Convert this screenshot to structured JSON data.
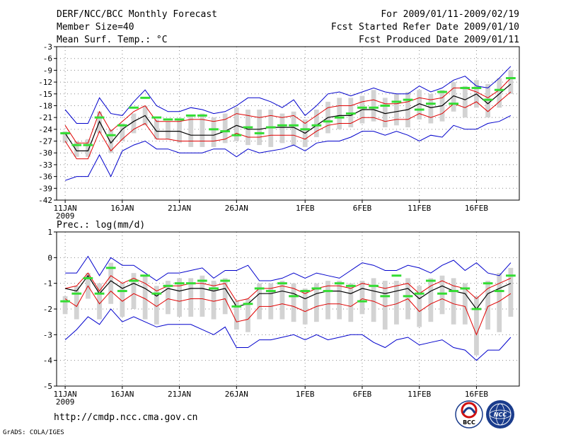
{
  "header": {
    "title": "DERF/NCC/BCC Monthly Forecast",
    "member_size": "Member Size=40",
    "variable": "Mean Surf. Temp.: °C",
    "period": "For 2009/01/11-2009/02/19",
    "fcst_started": "Fcst Started Refer Date 2009/01/10",
    "fcst_produced": "Fcst Produced Date 2009/01/11"
  },
  "footer": {
    "url": "http://cmdp.ncc.cma.gov.cn",
    "grads_credit": "GrADS: COLA/IGES",
    "logo_bcc": "BCC",
    "logo_ncc": "NCC"
  },
  "colors": {
    "ensemble_mean": "#000000",
    "spread_band": "#e00000",
    "extreme_envelope": "#0000cc",
    "box": "#d3d3d3",
    "observation": "#33dd33",
    "grid": "#888888"
  },
  "chart_data": [
    {
      "type": "line",
      "title": "Mean Surf. Temp.: °C",
      "xlabel": "",
      "ylabel": "°C",
      "ylim": [
        -42,
        -3
      ],
      "y_ticks": [
        "-3",
        "-6",
        "-9",
        "-12",
        "-15",
        "-18",
        "-21",
        "-24",
        "-27",
        "-30",
        "-33",
        "-36",
        "-39",
        "-42"
      ],
      "x_ticks": [
        {
          "day": 1,
          "label": "11JAN",
          "sublabel": "2009"
        },
        {
          "day": 6,
          "label": "16JAN"
        },
        {
          "day": 11,
          "label": "21JAN"
        },
        {
          "day": 16,
          "label": "26JAN"
        },
        {
          "day": 22,
          "label": "1FEB"
        },
        {
          "day": 27,
          "label": "6FEB"
        },
        {
          "day": 32,
          "label": "11FEB"
        },
        {
          "day": 37,
          "label": "16FEB"
        }
      ],
      "grid": true,
      "x": [
        1,
        2,
        3,
        4,
        5,
        6,
        7,
        8,
        9,
        10,
        11,
        12,
        13,
        14,
        15,
        16,
        17,
        18,
        19,
        20,
        21,
        22,
        23,
        24,
        25,
        26,
        27,
        28,
        29,
        30,
        31,
        32,
        33,
        34,
        35,
        36,
        37,
        38,
        39,
        40
      ],
      "series": [
        {
          "name": "max",
          "values": [
            -19,
            -22.5,
            -22.5,
            -16,
            -20,
            -20.5,
            -17,
            -14,
            -18,
            -19.5,
            -19.5,
            -18.5,
            -19,
            -20,
            -19.5,
            -18,
            -16,
            -16,
            -17,
            -18.5,
            -16.5,
            -20.5,
            -18,
            -15,
            -14.5,
            -15.5,
            -14.5,
            -13.5,
            -14.5,
            -15,
            -15,
            -13,
            -14.5,
            -13.5,
            -11.5,
            -10.5,
            -13,
            -13.5,
            -11,
            -8
          ]
        },
        {
          "name": "upper",
          "values": [
            -23,
            -27.5,
            -27.5,
            -19.5,
            -24.5,
            -22,
            -19.5,
            -18,
            -22,
            -22,
            -22,
            -21.5,
            -21.5,
            -22,
            -21.5,
            -20,
            -20.5,
            -21,
            -20.5,
            -21,
            -20.5,
            -22.5,
            -20.5,
            -18.5,
            -18,
            -18,
            -17,
            -16.5,
            -17.5,
            -17.5,
            -17,
            -16,
            -16.5,
            -16,
            -13.5,
            -13.5,
            -14.5,
            -16,
            -14,
            -11
          ]
        },
        {
          "name": "mean",
          "values": [
            -25,
            -29.5,
            -29.5,
            -22,
            -27.5,
            -24,
            -22,
            -20.5,
            -24.5,
            -24.5,
            -24.5,
            -25.5,
            -25.5,
            -25.5,
            -24.5,
            -23,
            -24,
            -24,
            -23.5,
            -23.5,
            -23.5,
            -25,
            -23,
            -21,
            -20.5,
            -20.5,
            -19,
            -19,
            -20,
            -19.5,
            -19,
            -17.5,
            -18.5,
            -18,
            -15.5,
            -16.5,
            -15,
            -17.5,
            -15,
            -12.5
          ]
        },
        {
          "name": "lower",
          "values": [
            -27,
            -31.5,
            -31.5,
            -24.5,
            -29.5,
            -26.5,
            -24,
            -22.5,
            -26.5,
            -26.5,
            -27,
            -27,
            -27,
            -27,
            -26.5,
            -25,
            -26,
            -26,
            -25.5,
            -25.5,
            -25.5,
            -26.5,
            -24.5,
            -23,
            -22.5,
            -22.5,
            -21,
            -21,
            -22,
            -21.5,
            -21.5,
            -20,
            -21,
            -20,
            -17.5,
            -18.5,
            -17,
            -19.5,
            -17,
            -14.5
          ]
        },
        {
          "name": "min",
          "values": [
            -37,
            -36,
            -36,
            -30.5,
            -36,
            -29.5,
            -28,
            -27,
            -29,
            -29,
            -30,
            -30,
            -30,
            -29,
            -29,
            -31,
            -29,
            -30,
            -29.5,
            -29,
            -28,
            -29.5,
            -27.5,
            -27,
            -27,
            -26,
            -24.5,
            -24.5,
            -25.5,
            -24.5,
            -25.5,
            -27,
            -25.5,
            -26,
            -23,
            -24,
            -24,
            -22.5,
            -22,
            -20.5
          ]
        },
        {
          "name": "box_top",
          "values": [
            -24.5,
            -27,
            -26.5,
            -19.5,
            -24,
            -22.5,
            -20,
            -18,
            -21.5,
            -22,
            -21.5,
            -20.5,
            -20,
            -21,
            -20,
            -18.5,
            -19,
            -19,
            -19,
            -20,
            -19.5,
            -21.5,
            -19,
            -17,
            -16,
            -16,
            -15.5,
            -14,
            -16,
            -15,
            -14.5,
            -14,
            -15,
            -14,
            -12,
            -13,
            -11.5,
            -12.5,
            -11,
            -9
          ]
        },
        {
          "name": "box_bottom",
          "values": [
            -27.5,
            -31,
            -31,
            -25,
            -30,
            -27,
            -25,
            -23,
            -26.5,
            -26.5,
            -27.5,
            -28.5,
            -28.5,
            -28.5,
            -27.5,
            -27,
            -28,
            -28,
            -28.5,
            -27.5,
            -28,
            -28.5,
            -26,
            -25,
            -24,
            -23.5,
            -22.5,
            -22,
            -23.5,
            -23,
            -23.5,
            -21.5,
            -22.5,
            -22,
            -19.5,
            -21,
            -18.5,
            -21,
            -18.5,
            -15
          ]
        },
        {
          "name": "observed",
          "values": [
            -25,
            -28,
            -28,
            -21,
            -25.5,
            -23,
            -18.5,
            -16,
            -21,
            -21.5,
            -21.5,
            -20.5,
            -20.5,
            -24,
            -24.5,
            -25.5,
            -23.5,
            -25,
            -23.5,
            -23,
            -23,
            -24,
            -23,
            -22,
            -21,
            -20,
            -18.5,
            -18.5,
            -18,
            -17,
            -16.5,
            -19,
            -17.5,
            -14.5,
            -17.5,
            -13.5,
            -13.5,
            -16.5,
            -14,
            -11
          ]
        }
      ]
    },
    {
      "type": "line",
      "title": "Prec.: log(mm/d)",
      "xlabel": "",
      "ylabel": "log(mm/d)",
      "ylim": [
        -5,
        1
      ],
      "y_ticks": [
        "1",
        "0",
        "-1",
        "-2",
        "-3",
        "-4",
        "-5"
      ],
      "x_ticks": [
        {
          "day": 1,
          "label": "11JAN",
          "sublabel": "2009"
        },
        {
          "day": 6,
          "label": "16JAN"
        },
        {
          "day": 11,
          "label": "21JAN"
        },
        {
          "day": 16,
          "label": "26JAN"
        },
        {
          "day": 22,
          "label": "1FEB"
        },
        {
          "day": 27,
          "label": "6FEB"
        },
        {
          "day": 32,
          "label": "11FEB"
        },
        {
          "day": 37,
          "label": "16FEB"
        }
      ],
      "grid": true,
      "x": [
        1,
        2,
        3,
        4,
        5,
        6,
        7,
        8,
        9,
        10,
        11,
        12,
        13,
        14,
        15,
        16,
        17,
        18,
        19,
        20,
        21,
        22,
        23,
        24,
        25,
        26,
        27,
        28,
        29,
        30,
        31,
        32,
        33,
        34,
        35,
        36,
        37,
        38,
        39,
        40
      ],
      "series": [
        {
          "name": "max",
          "values": [
            -0.6,
            -0.6,
            0.05,
            -0.7,
            0,
            -0.3,
            -0.3,
            -0.6,
            -0.9,
            -0.6,
            -0.6,
            -0.5,
            -0.4,
            -0.8,
            -0.5,
            -0.5,
            -0.3,
            -0.9,
            -0.9,
            -0.8,
            -0.6,
            -0.8,
            -0.6,
            -0.7,
            -0.8,
            -0.5,
            -0.2,
            -0.3,
            -0.5,
            -0.5,
            -0.3,
            -0.4,
            -0.6,
            -0.3,
            -0.1,
            -0.5,
            -0.2,
            -0.6,
            -0.7,
            -0.2
          ]
        },
        {
          "name": "upper",
          "values": [
            -1.2,
            -1.1,
            -0.6,
            -1.3,
            -0.7,
            -1,
            -0.8,
            -1,
            -1.3,
            -1.1,
            -1.1,
            -1,
            -1,
            -1.1,
            -1,
            -1.7,
            -1.6,
            -1.2,
            -1.2,
            -1.1,
            -1.2,
            -1.4,
            -1.2,
            -1.1,
            -1.1,
            -1.2,
            -1,
            -1.1,
            -1.2,
            -1.1,
            -1,
            -1.4,
            -1.1,
            -0.9,
            -1.1,
            -1.2,
            -1.6,
            -1.2,
            -1,
            -0.8
          ]
        },
        {
          "name": "mean",
          "values": [
            -1.2,
            -1.3,
            -0.7,
            -1.4,
            -0.9,
            -1.2,
            -1,
            -1.2,
            -1.5,
            -1.2,
            -1.3,
            -1.2,
            -1.2,
            -1.3,
            -1.2,
            -1.9,
            -1.8,
            -1.4,
            -1.4,
            -1.3,
            -1.4,
            -1.6,
            -1.4,
            -1.3,
            -1.3,
            -1.4,
            -1.2,
            -1.3,
            -1.4,
            -1.3,
            -1.2,
            -1.6,
            -1.3,
            -1.1,
            -1.3,
            -1.4,
            -2,
            -1.4,
            -1.2,
            -1
          ]
        },
        {
          "name": "lower",
          "values": [
            -1.6,
            -1.9,
            -1.1,
            -1.8,
            -1.3,
            -1.7,
            -1.4,
            -1.6,
            -1.9,
            -1.6,
            -1.7,
            -1.6,
            -1.6,
            -1.7,
            -1.6,
            -2.5,
            -2.4,
            -1.9,
            -1.9,
            -1.8,
            -1.9,
            -2.1,
            -1.9,
            -1.8,
            -1.8,
            -1.9,
            -1.6,
            -1.7,
            -1.9,
            -1.8,
            -1.6,
            -2.1,
            -1.8,
            -1.6,
            -1.8,
            -1.9,
            -3,
            -1.9,
            -1.7,
            -1.4
          ]
        },
        {
          "name": "min",
          "values": [
            -3.2,
            -2.8,
            -2.3,
            -2.6,
            -2,
            -2.5,
            -2.3,
            -2.5,
            -2.7,
            -2.6,
            -2.6,
            -2.6,
            -2.8,
            -3,
            -2.7,
            -3.5,
            -3.5,
            -3.2,
            -3.2,
            -3.1,
            -3,
            -3.2,
            -3,
            -3.2,
            -3.1,
            -3,
            -3,
            -3.3,
            -3.5,
            -3.2,
            -3.1,
            -3.4,
            -3.3,
            -3.2,
            -3.5,
            -3.6,
            -4,
            -3.6,
            -3.6,
            -3.1
          ]
        },
        {
          "name": "box_top",
          "values": [
            -1.5,
            -1.1,
            -0.6,
            -1,
            -0.2,
            -1,
            -0.6,
            -0.7,
            -1.1,
            -0.9,
            -0.8,
            -0.8,
            -0.7,
            -0.9,
            -0.8,
            -1.7,
            -1.6,
            -1,
            -1,
            -0.9,
            -1,
            -1.2,
            -1,
            -0.9,
            -0.9,
            -1,
            -0.9,
            -0.8,
            -0.9,
            -0.9,
            -0.8,
            -1.1,
            -0.8,
            -0.7,
            -0.8,
            -1,
            -1.5,
            -0.9,
            -0.6,
            -0.4
          ]
        },
        {
          "name": "box_bottom",
          "values": [
            -2.2,
            -2.4,
            -1.6,
            -2.4,
            -1.8,
            -2.3,
            -2,
            -2.4,
            -2.6,
            -2.2,
            -2.3,
            -2.3,
            -2.3,
            -2.4,
            -2.2,
            -2.8,
            -2.9,
            -2.4,
            -2.4,
            -2.4,
            -2.5,
            -2.6,
            -2.5,
            -2.4,
            -2.4,
            -2.5,
            -2.2,
            -2.5,
            -2.8,
            -2.6,
            -2.4,
            -2.7,
            -2.5,
            -2.2,
            -2.6,
            -2.6,
            -3.8,
            -2.8,
            -2.9,
            -2.3
          ]
        },
        {
          "name": "observed",
          "values": [
            -1.7,
            -1.4,
            -0.8,
            -1.4,
            -0.4,
            -1.3,
            -0.9,
            -0.7,
            -1.4,
            -1.1,
            -1,
            -1,
            -0.9,
            -1.2,
            -0.9,
            -1.9,
            -1.8,
            -1.2,
            -1.3,
            -1,
            -1.5,
            -1.3,
            -1.2,
            -1.3,
            -1,
            -1.1,
            -1.7,
            -1.1,
            -1.5,
            -0.7,
            -1.5,
            -1.4,
            -0.9,
            -1.4,
            -1.3,
            -1.2,
            -2,
            -1,
            -1.3,
            -0.7
          ]
        }
      ]
    }
  ]
}
